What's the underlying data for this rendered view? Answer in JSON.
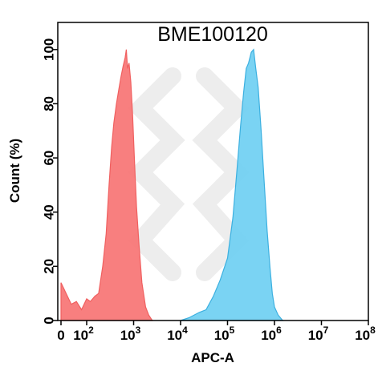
{
  "chart_data": {
    "type": "area",
    "title": "BME100120",
    "xlabel": "APC-A",
    "ylabel": "Count  (%)",
    "x_scale": "biexponential-log",
    "xlim": [
      0,
      100000000
    ],
    "ylim": [
      0,
      110
    ],
    "x_ticks": [
      {
        "value": 0,
        "base": "0",
        "exp": ""
      },
      {
        "value": 100,
        "base": "10",
        "exp": "2"
      },
      {
        "value": 1000,
        "base": "10",
        "exp": "3"
      },
      {
        "value": 10000,
        "base": "10",
        "exp": "4"
      },
      {
        "value": 100000,
        "base": "10",
        "exp": "5"
      },
      {
        "value": 1000000,
        "base": "10",
        "exp": "6"
      },
      {
        "value": 10000000,
        "base": "10",
        "exp": "7"
      },
      {
        "value": 100000000,
        "base": "10",
        "exp": "8"
      }
    ],
    "y_ticks": [
      0,
      20,
      40,
      60,
      80,
      100
    ],
    "grid": false,
    "legend": "none",
    "series": [
      {
        "color": "#f06060",
        "fill": "#f77474",
        "points": [
          [
            0,
            14
          ],
          [
            20,
            10
          ],
          [
            40,
            6
          ],
          [
            60,
            7
          ],
          [
            80,
            4
          ],
          [
            100,
            8
          ],
          [
            120,
            7
          ],
          [
            150,
            9
          ],
          [
            180,
            10
          ],
          [
            220,
            20
          ],
          [
            260,
            32
          ],
          [
            300,
            50
          ],
          [
            340,
            64
          ],
          [
            380,
            73
          ],
          [
            430,
            80
          ],
          [
            480,
            85
          ],
          [
            540,
            90
          ],
          [
            600,
            94
          ],
          [
            660,
            97
          ],
          [
            700,
            100
          ],
          [
            740,
            93
          ],
          [
            800,
            95
          ],
          [
            870,
            88
          ],
          [
            950,
            76
          ],
          [
            1050,
            58
          ],
          [
            1150,
            42
          ],
          [
            1300,
            28
          ],
          [
            1500,
            14
          ],
          [
            1800,
            5
          ],
          [
            2100,
            2
          ],
          [
            2500,
            0
          ]
        ]
      },
      {
        "color": "#3cb0e0",
        "fill": "#6fcff2",
        "points": [
          [
            10000,
            0
          ],
          [
            15000,
            1
          ],
          [
            25000,
            3
          ],
          [
            35000,
            4
          ],
          [
            50000,
            9
          ],
          [
            70000,
            15
          ],
          [
            100000,
            23
          ],
          [
            130000,
            38
          ],
          [
            160000,
            56
          ],
          [
            190000,
            72
          ],
          [
            220000,
            84
          ],
          [
            250000,
            93
          ],
          [
            280000,
            95
          ],
          [
            320000,
            99
          ],
          [
            360000,
            100
          ],
          [
            400000,
            93
          ],
          [
            450000,
            86
          ],
          [
            520000,
            70
          ],
          [
            600000,
            52
          ],
          [
            700000,
            33
          ],
          [
            800000,
            20
          ],
          [
            900000,
            10
          ],
          [
            1000000,
            5
          ],
          [
            1200000,
            2
          ],
          [
            1500000,
            0
          ]
        ]
      }
    ]
  }
}
